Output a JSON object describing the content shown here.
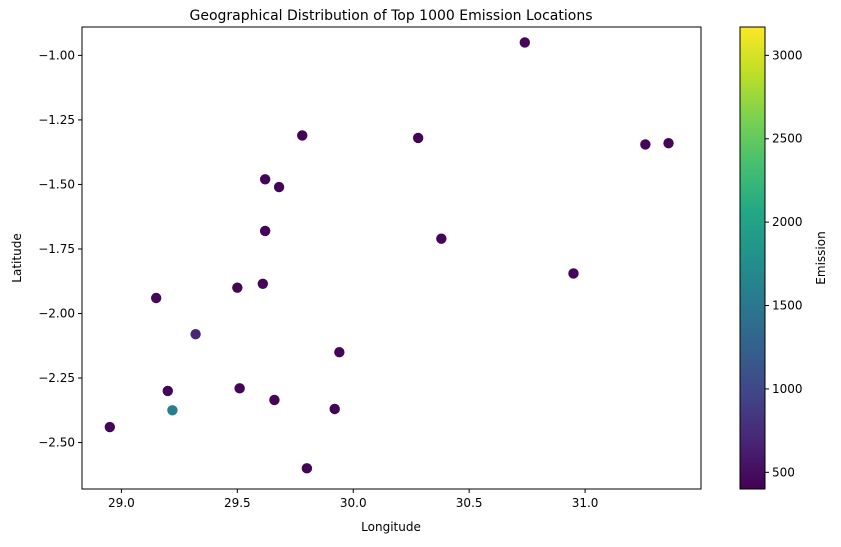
{
  "chart_data": {
    "type": "scatter",
    "title": "Geographical Distribution of Top 1000 Emission Locations",
    "xlabel": "Longitude",
    "ylabel": "Latitude",
    "xlim": [
      28.83,
      31.5
    ],
    "ylim": [
      -2.68,
      -0.89
    ],
    "xticks": [
      29.0,
      29.5,
      30.0,
      30.5,
      31.0
    ],
    "xtick_labels": [
      "29.0",
      "29.5",
      "30.0",
      "30.5",
      "31.0"
    ],
    "yticks": [
      -1.0,
      -1.25,
      -1.5,
      -1.75,
      -2.0,
      -2.25,
      -2.5
    ],
    "ytick_labels": [
      "−1.00",
      "−1.25",
      "−1.50",
      "−1.75",
      "−2.00",
      "−2.25",
      "−2.50"
    ],
    "grid": false,
    "colormap": "viridis",
    "color_range": [
      400,
      3170
    ],
    "colorbar_label": "Emission",
    "colorbar_ticks": [
      500,
      1000,
      1500,
      2000,
      2500,
      3000
    ],
    "colorbar_tick_labels": [
      "500",
      "1000",
      "1500",
      "2000",
      "2500",
      "3000"
    ],
    "points": [
      {
        "x": 30.74,
        "y": -0.95,
        "value": 450
      },
      {
        "x": 29.78,
        "y": -1.31,
        "value": 430
      },
      {
        "x": 30.28,
        "y": -1.32,
        "value": 430
      },
      {
        "x": 31.26,
        "y": -1.345,
        "value": 440
      },
      {
        "x": 31.36,
        "y": -1.34,
        "value": 430
      },
      {
        "x": 29.62,
        "y": -1.48,
        "value": 430
      },
      {
        "x": 29.68,
        "y": -1.51,
        "value": 430
      },
      {
        "x": 29.62,
        "y": -1.68,
        "value": 430
      },
      {
        "x": 30.38,
        "y": -1.71,
        "value": 430
      },
      {
        "x": 30.95,
        "y": -1.845,
        "value": 430
      },
      {
        "x": 29.61,
        "y": -1.885,
        "value": 430
      },
      {
        "x": 29.5,
        "y": -1.9,
        "value": 430
      },
      {
        "x": 29.15,
        "y": -1.94,
        "value": 450
      },
      {
        "x": 29.32,
        "y": -2.08,
        "value": 700
      },
      {
        "x": 29.94,
        "y": -2.15,
        "value": 430
      },
      {
        "x": 29.51,
        "y": -2.29,
        "value": 430
      },
      {
        "x": 29.2,
        "y": -2.3,
        "value": 430
      },
      {
        "x": 29.66,
        "y": -2.335,
        "value": 430
      },
      {
        "x": 29.22,
        "y": -2.375,
        "value": 1580
      },
      {
        "x": 29.92,
        "y": -2.37,
        "value": 430
      },
      {
        "x": 28.95,
        "y": -2.44,
        "value": 430
      },
      {
        "x": 29.8,
        "y": -2.6,
        "value": 430
      }
    ]
  }
}
